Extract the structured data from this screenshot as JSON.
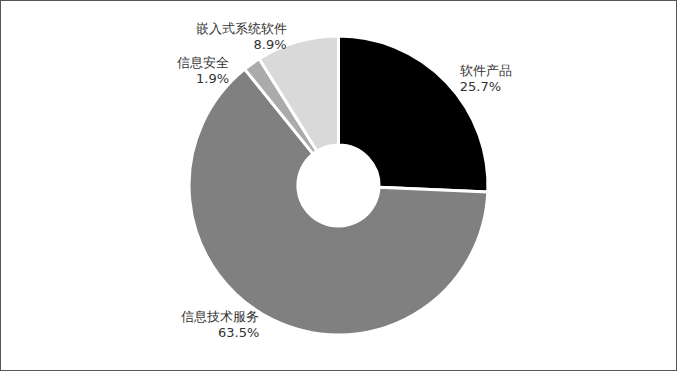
{
  "chart_data": {
    "type": "pie",
    "categories": [
      "软件产品",
      "信息技术服务",
      "信息安全",
      "嵌入式系统软件"
    ],
    "values": [
      25.7,
      63.5,
      1.9,
      8.9
    ],
    "value_labels": [
      "25.7%",
      "63.5%",
      "1.9%",
      "8.9%"
    ],
    "colors": [
      "#000000",
      "#808080",
      "#ababab",
      "#d9d9d9"
    ],
    "data_labels": true
  }
}
